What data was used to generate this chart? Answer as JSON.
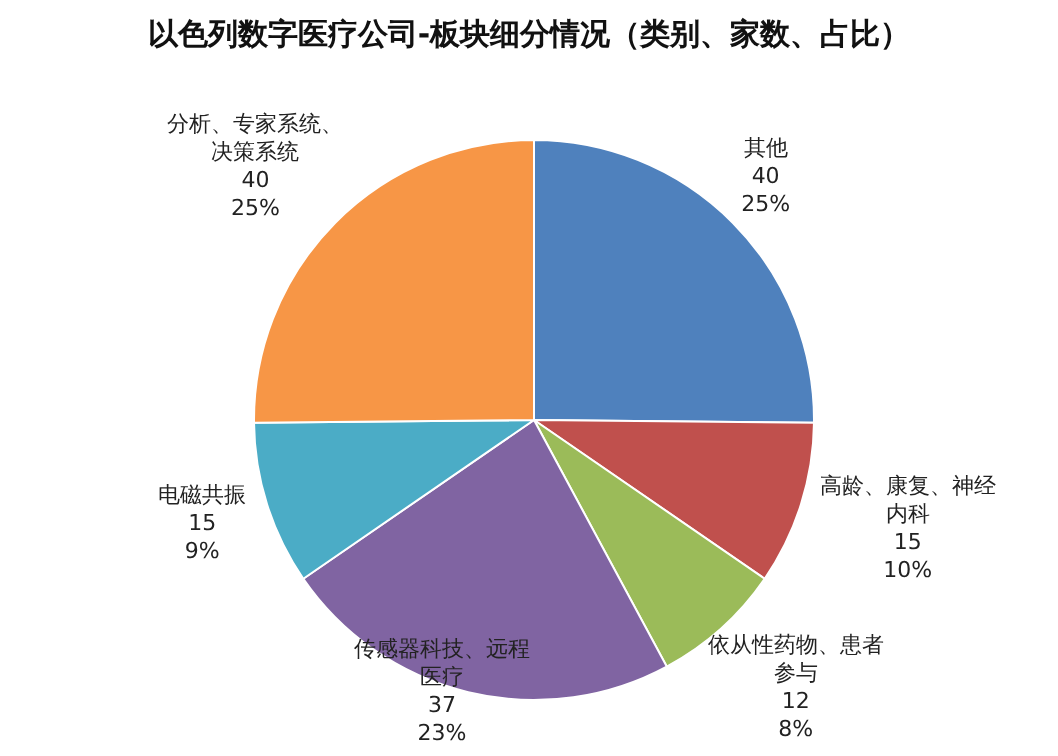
{
  "chart_data": {
    "type": "pie",
    "title": "以色列数字医疗公司-板块细分情况（类别、家数、占比）",
    "categories": [
      "其他",
      "高龄、康复、神经内科",
      "依从性药物、患者参与",
      "传感器科技、远程医疗",
      "电磁共振",
      "分析、专家系统、决策系统"
    ],
    "values": [
      40,
      15,
      12,
      37,
      15,
      40
    ],
    "value_labels": [
      "40\n25%",
      "15\n10%",
      "12\n8%",
      "37\n23%",
      "15\n9%",
      "40\n25%"
    ],
    "colors": [
      "#4f81bd",
      "#c0504d",
      "#9bbb59",
      "#8064a2",
      "#4bacc6",
      "#f79646"
    ],
    "legend": false
  }
}
